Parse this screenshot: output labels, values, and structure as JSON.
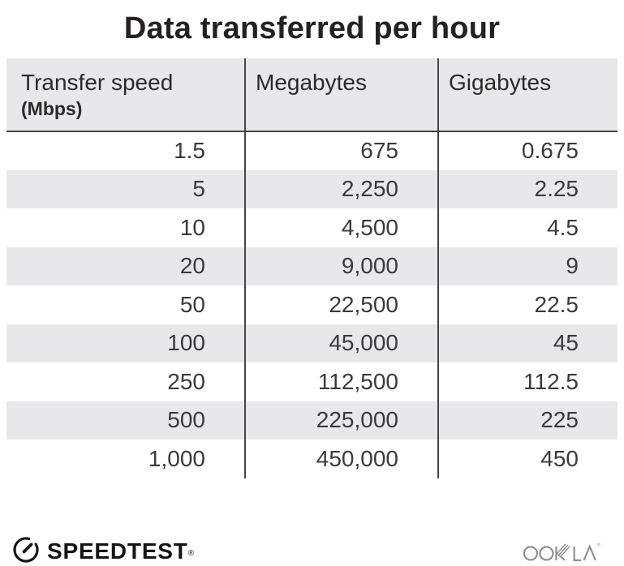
{
  "title": "Data transferred per hour",
  "table": {
    "headers": [
      {
        "label": "Transfer speed",
        "sublabel": "(Mbps)"
      },
      {
        "label": "Megabytes"
      },
      {
        "label": "Gigabytes"
      }
    ],
    "rows": [
      [
        "1.5",
        "675",
        "0.675"
      ],
      [
        "5",
        "2,250",
        "2.25"
      ],
      [
        "10",
        "4,500",
        "4.5"
      ],
      [
        "20",
        "9,000",
        "9"
      ],
      [
        "50",
        "22,500",
        "22.5"
      ],
      [
        "100",
        "45,000",
        "45"
      ],
      [
        "250",
        "112,500",
        "112.5"
      ],
      [
        "500",
        "225,000",
        "225"
      ],
      [
        "1,000",
        "450,000",
        "450"
      ]
    ]
  },
  "chart_data": {
    "type": "table",
    "title": "Data transferred per hour",
    "columns": [
      "Transfer speed (Mbps)",
      "Megabytes",
      "Gigabytes"
    ],
    "rows": [
      [
        1.5,
        675,
        0.675
      ],
      [
        5,
        2250,
        2.25
      ],
      [
        10,
        4500,
        4.5
      ],
      [
        20,
        9000,
        9
      ],
      [
        50,
        22500,
        22.5
      ],
      [
        100,
        45000,
        45
      ],
      [
        250,
        112500,
        112.5
      ],
      [
        500,
        225000,
        225
      ],
      [
        1000,
        450000,
        450
      ]
    ]
  },
  "footer": {
    "speedtest_label": "SPEEDTEST",
    "speedtest_reg": "®",
    "ookla_label": "OOKLA",
    "ookla_reg": "®"
  },
  "colors": {
    "stripe_bg": "#e8e8eb",
    "divider": "#454545",
    "title_text": "#242122",
    "cell_text": "#3a3a3a",
    "ookla_gray": "#8d8d8d",
    "logo_black": "#141414"
  }
}
